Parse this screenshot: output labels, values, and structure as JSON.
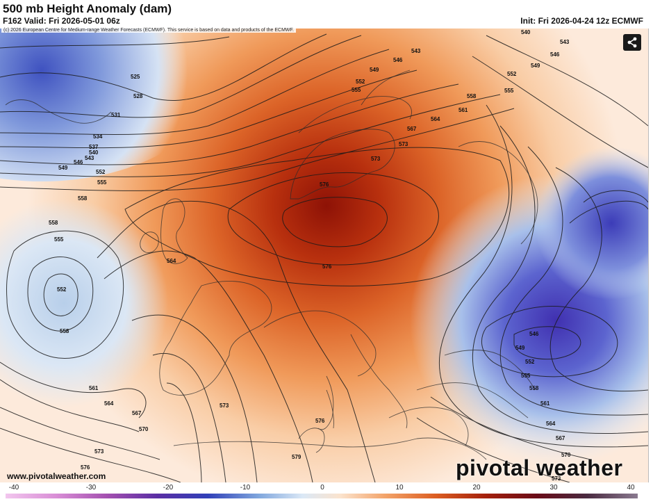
{
  "header": {
    "title": "500 mb Height Anomaly (dam)",
    "valid": "F162 Valid: Fri 2026-05-01 06z",
    "init": "Init: Fri 2026-04-24 12z ECMWF",
    "copyright": "(c) 2026 European Centre for Medium-range Weather Forecasts (ECMWF). This service is based on data and products of the ECMWF."
  },
  "map": {
    "contour_labels": [
      "525",
      "528",
      "531",
      "534",
      "537",
      "540",
      "543",
      "546",
      "549",
      "552",
      "555",
      "558",
      "561",
      "564",
      "567",
      "570",
      "573",
      "576",
      "579"
    ],
    "high_center_label": "576",
    "atlantic_low_label": "552",
    "eastern_low_label": "546",
    "colors": {
      "ridge": "#9c1a08",
      "warm": "#e0702c",
      "light_warm": "#fbe0c6",
      "cool": "#cfe0f2",
      "trough": "#3b37b8"
    }
  },
  "share_icon": "share-icon",
  "branding": {
    "logo_text": "pivotal weather",
    "site": "www.pivotalweather.com"
  },
  "colorbar": {
    "ticks": [
      "-40",
      "-30",
      "-20",
      "-10",
      "0",
      "10",
      "20",
      "30",
      "40"
    ],
    "range": [
      -40,
      40
    ]
  }
}
